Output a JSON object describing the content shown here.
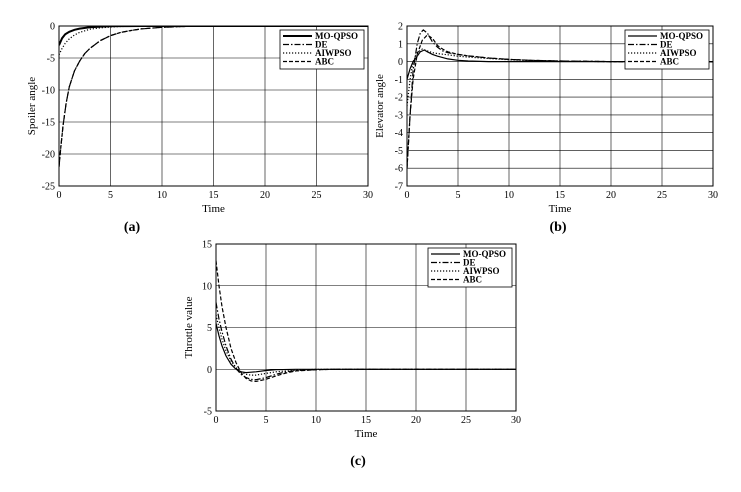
{
  "chart_data": [
    {
      "type": "line",
      "panel_label": "(a)",
      "xlabel": "Time",
      "ylabel": "Spoiler angle",
      "xlim": [
        0,
        30
      ],
      "ylim": [
        -25,
        0
      ],
      "xticks": [
        0,
        5,
        10,
        15,
        20,
        25,
        30
      ],
      "yticks": [
        -25,
        -20,
        -15,
        -10,
        -5,
        0
      ],
      "grid": true,
      "legend_position": "top-right",
      "series": [
        {
          "name": "MO-QPSO",
          "style": "solid-thick",
          "x": [
            0,
            0.3,
            0.6,
            1,
            1.5,
            2,
            3,
            4,
            5,
            6,
            8,
            10,
            15,
            20,
            30
          ],
          "y": [
            -3,
            -1.9,
            -1.3,
            -0.9,
            -0.6,
            -0.4,
            -0.2,
            -0.1,
            -0.05,
            -0.02,
            0,
            0,
            0,
            0,
            0
          ]
        },
        {
          "name": "DE",
          "style": "dashdot",
          "x": [
            0,
            0.2,
            0.4,
            0.7,
            1,
            1.5,
            2,
            2.5,
            3,
            4,
            5,
            6,
            7,
            8,
            10,
            12,
            15,
            20,
            30
          ],
          "y": [
            -22,
            -18.5,
            -15.5,
            -12,
            -9.5,
            -7,
            -5.5,
            -4.3,
            -3.5,
            -2.3,
            -1.5,
            -1,
            -0.7,
            -0.45,
            -0.2,
            -0.08,
            0,
            0,
            0
          ]
        },
        {
          "name": "AIWPSO",
          "style": "dotted",
          "x": [
            0,
            0.3,
            0.6,
            1,
            1.5,
            2,
            3,
            4,
            5,
            6,
            8,
            10,
            15,
            20,
            30
          ],
          "y": [
            -4.5,
            -3.5,
            -2.7,
            -2,
            -1.4,
            -1,
            -0.5,
            -0.3,
            -0.15,
            -0.08,
            -0.02,
            0,
            0,
            0,
            0
          ]
        },
        {
          "name": "ABC",
          "style": "dashed",
          "x": [
            0,
            0.2,
            0.4,
            0.7,
            1,
            1.5,
            2,
            2.5,
            3,
            4,
            5,
            6,
            7,
            8,
            10,
            12,
            15,
            20,
            30
          ],
          "y": [
            -22,
            -18.5,
            -15.5,
            -12,
            -9.5,
            -7,
            -5.5,
            -4.3,
            -3.5,
            -2.3,
            -1.5,
            -1,
            -0.7,
            -0.45,
            -0.2,
            -0.08,
            0,
            0,
            0
          ]
        }
      ]
    },
    {
      "type": "line",
      "panel_label": "(b)",
      "xlabel": "Time",
      "ylabel": "Elevator angle",
      "xlim": [
        0,
        30
      ],
      "ylim": [
        -7,
        2
      ],
      "xticks": [
        0,
        5,
        10,
        15,
        20,
        25,
        30
      ],
      "yticks": [
        -7,
        -6,
        -5,
        -4,
        -3,
        -2,
        -1,
        0,
        1,
        2
      ],
      "grid": true,
      "legend_position": "top-right",
      "series": [
        {
          "name": "MO-QPSO",
          "style": "solid",
          "x": [
            0,
            0.3,
            0.6,
            1,
            1.3,
            1.7,
            2,
            2.5,
            3,
            4,
            5,
            6,
            8,
            10,
            30
          ],
          "y": [
            -1,
            -0.4,
            0,
            0.3,
            0.55,
            0.65,
            0.55,
            0.4,
            0.3,
            0.15,
            0.07,
            0.03,
            0,
            0,
            0
          ]
        },
        {
          "name": "DE",
          "style": "dashdot",
          "x": [
            0,
            0.3,
            0.6,
            1,
            1.3,
            1.6,
            2,
            2.5,
            3,
            3.5,
            4,
            5,
            6,
            8,
            10,
            12,
            15,
            20,
            30
          ],
          "y": [
            -6,
            -3,
            -0.5,
            1,
            1.6,
            1.78,
            1.6,
            1.1,
            0.8,
            0.6,
            0.5,
            0.4,
            0.32,
            0.2,
            0.12,
            0.07,
            0.03,
            0,
            0
          ]
        },
        {
          "name": "AIWPSO",
          "style": "dotted",
          "x": [
            0,
            0.3,
            0.6,
            1,
            1.5,
            2,
            2.5,
            3,
            4,
            5,
            6,
            8,
            10,
            12,
            15,
            20,
            30
          ],
          "y": [
            -2.5,
            -1,
            0,
            0.5,
            0.7,
            0.6,
            0.5,
            0.45,
            0.38,
            0.3,
            0.25,
            0.17,
            0.1,
            0.06,
            0.02,
            0,
            0
          ]
        },
        {
          "name": "ABC",
          "style": "dashed",
          "x": [
            0,
            0.3,
            0.6,
            1,
            1.5,
            2,
            2.5,
            3,
            3.5,
            4,
            5,
            6,
            8,
            10,
            12,
            15,
            20,
            30
          ],
          "y": [
            -6,
            -3,
            -1,
            0.4,
            1.2,
            1.5,
            1.3,
            0.9,
            0.7,
            0.55,
            0.4,
            0.32,
            0.2,
            0.12,
            0.07,
            0.03,
            0,
            0
          ]
        }
      ]
    },
    {
      "type": "line",
      "panel_label": "(c)",
      "xlabel": "Time",
      "ylabel": "Throttle value",
      "xlim": [
        0,
        30
      ],
      "ylim": [
        -5,
        15
      ],
      "xticks": [
        0,
        5,
        10,
        15,
        20,
        25,
        30
      ],
      "yticks": [
        -5,
        0,
        5,
        10,
        15
      ],
      "grid": true,
      "legend_position": "top-right",
      "series": [
        {
          "name": "MO-QPSO",
          "style": "solid",
          "x": [
            0,
            0.3,
            0.6,
            1,
            1.5,
            2,
            2.5,
            3,
            3.5,
            4,
            5,
            6,
            8,
            10,
            30
          ],
          "y": [
            5.5,
            4,
            2.8,
            1.6,
            0.6,
            0,
            -0.3,
            -0.4,
            -0.35,
            -0.3,
            -0.15,
            -0.05,
            0,
            0,
            0
          ]
        },
        {
          "name": "DE",
          "style": "dashdot",
          "x": [
            0,
            0.3,
            0.6,
            1,
            1.5,
            2,
            2.5,
            3,
            3.5,
            4,
            5,
            6,
            7,
            8,
            10,
            12,
            30
          ],
          "y": [
            8,
            6,
            4.5,
            2.8,
            1.2,
            0.1,
            -0.6,
            -1,
            -1.2,
            -1.25,
            -1,
            -0.6,
            -0.3,
            -0.15,
            -0.05,
            0,
            0
          ]
        },
        {
          "name": "AIWPSO",
          "style": "dotted",
          "x": [
            0,
            0.3,
            0.6,
            1,
            1.5,
            2,
            2.5,
            3,
            3.5,
            4,
            5,
            6,
            8,
            10,
            30
          ],
          "y": [
            6.5,
            5,
            3.6,
            2.2,
            1,
            0.2,
            -0.3,
            -0.6,
            -0.7,
            -0.7,
            -0.5,
            -0.3,
            -0.1,
            0,
            0
          ]
        },
        {
          "name": "ABC",
          "style": "dashed",
          "x": [
            0,
            0.3,
            0.6,
            1,
            1.5,
            2,
            2.5,
            3,
            3.5,
            4,
            5,
            6,
            7,
            8,
            10,
            12,
            30
          ],
          "y": [
            13,
            10,
            7.5,
            5,
            2.5,
            0.8,
            -0.4,
            -1.1,
            -1.4,
            -1.45,
            -1.2,
            -0.8,
            -0.45,
            -0.2,
            -0.05,
            0,
            0
          ]
        }
      ]
    }
  ]
}
